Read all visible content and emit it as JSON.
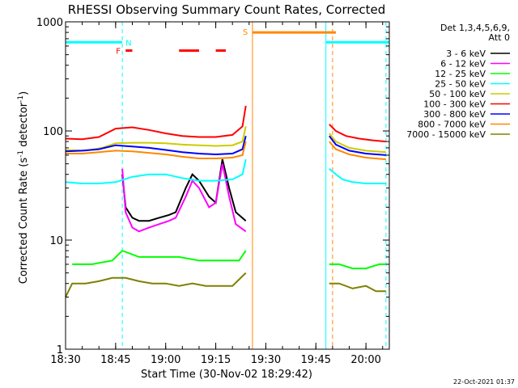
{
  "chart_data": {
    "type": "line",
    "title": "RHESSI Observing Summary Count Rates, Corrected",
    "xlabel": "Start Time (30-Nov-02 18:29:42)",
    "ylabel": "Corrected Count Rate (s⁻¹ detector⁻¹)",
    "ylabel_main": "Corrected Count Rate (s",
    "ylabel_sup1": "-1",
    "ylabel_mid": " detector",
    "ylabel_sup2": "-1",
    "ylabel_end": ")",
    "y_scale": "log",
    "ylim": [
      1,
      1000
    ],
    "xlim": [
      "18:30",
      "20:07"
    ],
    "x_ticks": [
      "18:30",
      "18:45",
      "19:00",
      "19:15",
      "19:30",
      "19:45",
      "20:00"
    ],
    "y_ticks": [
      "1",
      "10",
      "100",
      "1000"
    ],
    "legend_header": [
      "Det 1,3,4,5,6,9,",
      "Att 0"
    ],
    "legend_position": "right",
    "footer": "22-Oct-2021 01:37",
    "series": [
      {
        "name": "3 - 6 keV",
        "color": "#000000",
        "segments": [
          {
            "x": [
              "18:47",
              "18:48",
              "18:50",
              "18:52",
              "18:55",
              "18:58",
              "19:01",
              "19:03",
              "19:06",
              "19:08",
              "19:10",
              "19:13",
              "19:15",
              "19:17",
              "19:19",
              "19:21",
              "19:24"
            ],
            "y": [
              40,
              20,
              16,
              15,
              15,
              16,
              17,
              18,
              30,
              40,
              35,
              25,
              22,
              55,
              30,
              18,
              15
            ]
          }
        ]
      },
      {
        "name": "6 - 12 keV",
        "color": "#ff00ff",
        "segments": [
          {
            "x": [
              "18:47",
              "18:48",
              "18:50",
              "18:52",
              "18:55",
              "18:58",
              "19:01",
              "19:03",
              "19:06",
              "19:08",
              "19:10",
              "19:13",
              "19:15",
              "19:17",
              "19:19",
              "19:21",
              "19:24"
            ],
            "y": [
              45,
              18,
              13,
              12,
              13,
              14,
              15,
              16,
              25,
              35,
              30,
              20,
              22,
              50,
              25,
              14,
              12
            ]
          }
        ]
      },
      {
        "name": "12 - 25 keV",
        "color": "#00ff00",
        "segments": [
          {
            "x": [
              "18:32",
              "18:38",
              "18:44",
              "18:47",
              "18:52",
              "18:58",
              "19:04",
              "19:10",
              "19:16",
              "19:22",
              "19:24"
            ],
            "y": [
              6,
              6,
              6.5,
              8,
              7,
              7,
              7,
              6.5,
              6.5,
              6.5,
              8
            ]
          },
          {
            "x": [
              "19:49",
              "19:52",
              "19:56",
              "20:00",
              "20:04",
              "20:06"
            ],
            "y": [
              6,
              6,
              5.5,
              5.5,
              6,
              6
            ]
          }
        ]
      },
      {
        "name": "25 - 50 keV",
        "color": "#00ffff",
        "segments": [
          {
            "x": [
              "18:30",
              "18:35",
              "18:40",
              "18:45",
              "18:50",
              "18:55",
              "19:00",
              "19:05",
              "19:10",
              "19:15",
              "19:20",
              "19:23",
              "19:24"
            ],
            "y": [
              34,
              33,
              33,
              34,
              38,
              40,
              40,
              37,
              35,
              35,
              36,
              40,
              55
            ]
          },
          {
            "x": [
              "19:49",
              "19:51",
              "19:53",
              "19:56",
              "20:00",
              "20:06"
            ],
            "y": [
              45,
              40,
              36,
              34,
              33,
              33
            ]
          }
        ]
      },
      {
        "name": "50 - 100 keV",
        "color": "#cccc00",
        "segments": [
          {
            "x": [
              "18:30",
              "18:36",
              "18:41",
              "18:45",
              "18:50",
              "18:55",
              "19:00",
              "19:05",
              "19:10",
              "19:15",
              "19:20",
              "19:23",
              "19:24"
            ],
            "y": [
              67,
              66,
              70,
              77,
              78,
              78,
              77,
              75,
              74,
              73,
              74,
              80,
              110
            ]
          },
          {
            "x": [
              "19:49",
              "19:51",
              "19:55",
              "20:00",
              "20:06"
            ],
            "y": [
              95,
              80,
              70,
              66,
              64
            ]
          }
        ]
      },
      {
        "name": "100 - 300 keV",
        "color": "#ff0000",
        "segments": [
          {
            "x": [
              "18:30",
              "18:35",
              "18:40",
              "18:45",
              "18:50",
              "18:55",
              "19:00",
              "19:05",
              "19:10",
              "19:15",
              "19:20",
              "19:23",
              "19:24"
            ],
            "y": [
              85,
              84,
              88,
              105,
              108,
              102,
              95,
              90,
              88,
              88,
              92,
              110,
              170
            ]
          },
          {
            "x": [
              "19:49",
              "19:51",
              "19:54",
              "19:58",
              "20:02",
              "20:06"
            ],
            "y": [
              115,
              100,
              90,
              85,
              82,
              80
            ]
          }
        ]
      },
      {
        "name": "300 - 800 keV",
        "color": "#0000ff",
        "segments": [
          {
            "x": [
              "18:30",
              "18:35",
              "18:40",
              "18:45",
              "18:50",
              "18:55",
              "19:00",
              "19:05",
              "19:10",
              "19:15",
              "19:20",
              "19:23",
              "19:24"
            ],
            "y": [
              65,
              66,
              68,
              74,
              72,
              70,
              67,
              64,
              62,
              61,
              62,
              68,
              90
            ]
          },
          {
            "x": [
              "19:49",
              "19:51",
              "19:55",
              "20:00",
              "20:06"
            ],
            "y": [
              90,
              75,
              66,
              62,
              60
            ]
          }
        ]
      },
      {
        "name": "800 - 7000 keV",
        "color": "#ff8800",
        "segments": [
          {
            "x": [
              "18:30",
              "18:35",
              "18:40",
              "18:45",
              "18:50",
              "18:55",
              "19:00",
              "19:05",
              "19:10",
              "19:15",
              "19:20",
              "19:23",
              "19:24"
            ],
            "y": [
              62,
              62,
              64,
              66,
              65,
              63,
              61,
              58,
              56,
              56,
              57,
              60,
              80
            ]
          },
          {
            "x": [
              "19:49",
              "19:51",
              "19:55",
              "20:00",
              "20:06"
            ],
            "y": [
              80,
              68,
              61,
              57,
              55
            ]
          }
        ]
      },
      {
        "name": "7000 - 15000 keV",
        "color": "#808000",
        "segments": [
          {
            "x": [
              "18:30",
              "18:32",
              "18:36",
              "18:40",
              "18:44",
              "18:48",
              "18:52",
              "18:56",
              "19:00",
              "19:04",
              "19:08",
              "19:12",
              "19:16",
              "19:20",
              "19:24"
            ],
            "y": [
              3,
              4,
              4,
              4.2,
              4.5,
              4.5,
              4.2,
              4,
              4,
              3.8,
              4,
              3.8,
              3.8,
              3.8,
              5
            ]
          },
          {
            "x": [
              "19:49",
              "19:52",
              "19:56",
              "20:00",
              "20:03",
              "20:06"
            ],
            "y": [
              4,
              4,
              3.6,
              3.8,
              3.4,
              3.4
            ]
          }
        ]
      }
    ],
    "annotations": {
      "night_bars": [
        {
          "label": "N",
          "color": "#00ffff",
          "y": 650,
          "x_start": "18:30",
          "x_end": "18:47"
        },
        {
          "label": "",
          "color": "#00ffff",
          "y": 650,
          "x_start": "19:48",
          "x_end": "20:07"
        }
      ],
      "saa_bar": {
        "label": "S",
        "color": "#ff8800",
        "y": 800,
        "x_start": "19:26",
        "x_end": "19:51"
      },
      "flare_bars": {
        "label": "F",
        "color": "#ff0000",
        "y": 545,
        "ranges": [
          [
            "18:48",
            "18:50"
          ],
          [
            "19:04",
            "19:10"
          ],
          [
            "19:15",
            "19:18"
          ]
        ]
      },
      "vlines": [
        {
          "x": "18:47",
          "color": "#00ffff",
          "style": "dashed"
        },
        {
          "x": "19:26",
          "color": "#ff8800",
          "style": "solid"
        },
        {
          "x": "19:48",
          "color": "#00ffff",
          "style": "solid"
        },
        {
          "x": "19:50",
          "color": "#ff8800",
          "style": "dashed"
        },
        {
          "x": "20:06",
          "color": "#00ffff",
          "style": "dashed"
        }
      ]
    }
  }
}
